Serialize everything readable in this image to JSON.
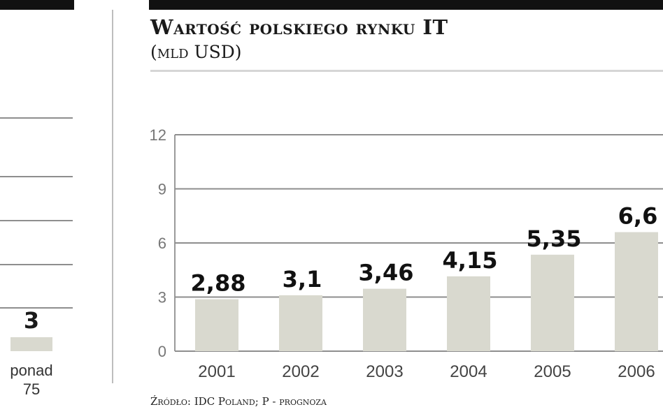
{
  "left_panel": {
    "bar_value": 3,
    "value_label": "3",
    "category_label": "ponad 75"
  },
  "header": {
    "title": "Wartość polskiego rynku IT",
    "subtitle": "(mld USD)"
  },
  "source": "Źródło: IDC Poland; P - prognoza",
  "colors": {
    "bar": "#d9d9cf",
    "grid": "#8e8e8e",
    "header_bar": "#111111"
  },
  "chart_data": {
    "type": "bar",
    "title": "Wartość polskiego rynku IT",
    "subtitle": "(mld USD)",
    "categories": [
      "2001",
      "2002",
      "2003",
      "2004",
      "2005",
      "2006"
    ],
    "values": [
      2.88,
      3.1,
      3.46,
      4.15,
      5.35,
      6.6
    ],
    "value_labels": [
      "2,88",
      "3,1",
      "3,46",
      "4,15",
      "5,35",
      "6,6"
    ],
    "yticks": [
      0,
      3,
      6,
      9,
      12
    ],
    "ytick_labels": [
      "0",
      "3",
      "6",
      "9",
      "12"
    ],
    "ylim": [
      0,
      12
    ],
    "grid": true,
    "legend": "none"
  }
}
